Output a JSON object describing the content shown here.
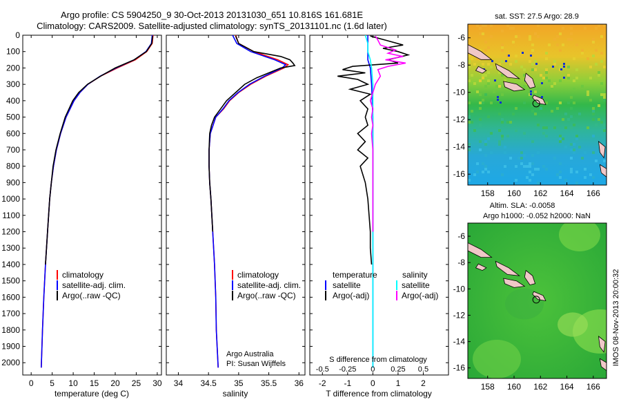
{
  "header": {
    "line1": "Argo profile: CS 5904250_9 30-Oct-2013 20131030_651 10.816S 161.681E",
    "line2": "Climatology: CARS2009. Satellite-adjusted climatology: synTS_20131101.nc (1.6d later)"
  },
  "timestamp": "IMOS 08-Nov-2013 20:00:32",
  "chart_data": [
    {
      "id": "temperature",
      "type": "line",
      "xlabel": "temperature (deg C)",
      "ylabel": "",
      "xlim": [
        -2,
        31
      ],
      "ylim": [
        2075,
        0
      ],
      "xticks": [
        0,
        5,
        10,
        15,
        20,
        25,
        30
      ],
      "yticks": [
        0,
        100,
        200,
        300,
        400,
        500,
        600,
        700,
        800,
        900,
        1000,
        1100,
        1200,
        1300,
        1400,
        1500,
        1600,
        1700,
        1800,
        1900,
        2000
      ],
      "legend": [
        "climatology",
        "satellite-adj. clim.",
        "Argo(..raw -QC)"
      ],
      "annotations": [],
      "series": [
        {
          "name": "climatology",
          "color": "#ff0000",
          "depth": [
            0,
            50,
            100,
            150,
            200,
            250,
            300,
            350,
            400,
            500,
            600,
            700,
            800,
            900,
            1000,
            1200,
            1400,
            1600,
            1800,
            2030
          ],
          "values": [
            29.0,
            28.8,
            27.5,
            24.8,
            20.5,
            16.5,
            13.5,
            11.6,
            10.2,
            8.3,
            7.0,
            6.0,
            5.3,
            4.8,
            4.4,
            3.9,
            3.4,
            3.0,
            2.7,
            2.4
          ]
        },
        {
          "name": "satellite-adj. clim.",
          "color": "#0000ff",
          "depth": [
            0,
            50,
            100,
            150,
            200,
            250,
            300,
            350,
            400,
            500,
            600,
            700,
            800,
            900,
            1000,
            1200,
            1400,
            1600,
            1800,
            2030
          ],
          "values": [
            28.8,
            28.6,
            27.3,
            24.5,
            20.2,
            16.4,
            13.5,
            11.6,
            10.2,
            8.3,
            7.0,
            6.0,
            5.3,
            4.8,
            4.4,
            3.9,
            3.4,
            3.0,
            2.7,
            2.4
          ]
        },
        {
          "name": "Argo(..raw -QC)",
          "color": "#000000",
          "depth": [
            5,
            50,
            100,
            150,
            200,
            250,
            300,
            350,
            400,
            500,
            600,
            700,
            800,
            900,
            1000,
            1200,
            1400
          ],
          "values": [
            28.9,
            28.7,
            27.4,
            24.5,
            20.0,
            16.5,
            13.4,
            11.3,
            9.9,
            8.1,
            6.9,
            5.9,
            5.2,
            4.8,
            4.4,
            3.9,
            3.4
          ]
        }
      ]
    },
    {
      "id": "salinity",
      "type": "line",
      "xlabel": "salinity",
      "ylabel": "",
      "xlim": [
        33.8,
        36.1
      ],
      "ylim": [
        2075,
        0
      ],
      "xticks": [
        34,
        34.5,
        35,
        35.5,
        36
      ],
      "legend": [
        "climatology",
        "satellite-adj. clim.",
        "Argo(..raw -QC)"
      ],
      "annotations": [
        "Argo Australia",
        "PI: Susan Wijffels"
      ],
      "series": [
        {
          "name": "climatology",
          "color": "#ff0000",
          "depth": [
            0,
            50,
            100,
            150,
            180,
            200,
            250,
            300,
            350,
            400,
            450,
            500,
            600,
            700,
            800,
            900,
            1000,
            1200,
            1400,
            1600,
            1800,
            2030
          ],
          "values": [
            34.95,
            35.0,
            35.25,
            35.65,
            35.82,
            35.75,
            35.45,
            35.2,
            35.0,
            34.85,
            34.75,
            34.62,
            34.53,
            34.51,
            34.51,
            34.52,
            34.54,
            34.57,
            34.6,
            34.62,
            34.63,
            34.66
          ]
        },
        {
          "name": "satellite-adj. clim.",
          "color": "#0000ff",
          "depth": [
            0,
            50,
            100,
            150,
            180,
            200,
            250,
            300,
            350,
            400,
            450,
            500,
            600,
            700,
            800,
            900,
            1000,
            1200,
            1400,
            1600,
            1800,
            2030
          ],
          "values": [
            34.9,
            34.97,
            35.2,
            35.6,
            35.78,
            35.72,
            35.43,
            35.18,
            34.99,
            34.84,
            34.74,
            34.62,
            34.53,
            34.51,
            34.51,
            34.52,
            34.54,
            34.57,
            34.6,
            34.62,
            34.63,
            34.66
          ]
        },
        {
          "name": "Argo(..raw -QC)",
          "color": "#000000",
          "depth": [
            5,
            50,
            100,
            130,
            150,
            170,
            185,
            200,
            230,
            260,
            300,
            350,
            400,
            450,
            500,
            550,
            600,
            700,
            800,
            900,
            1000,
            1200
          ],
          "values": [
            34.95,
            35.0,
            35.25,
            35.7,
            35.85,
            35.9,
            35.93,
            35.7,
            35.5,
            35.3,
            35.1,
            34.95,
            34.8,
            34.7,
            34.6,
            34.55,
            34.52,
            34.51,
            34.51,
            34.52,
            34.54,
            34.57
          ]
        }
      ]
    },
    {
      "id": "differences",
      "type": "line",
      "xlabel": "T difference from climatology",
      "top_label": "S difference from climatology",
      "xlim": [
        -2.5,
        3.0
      ],
      "ylim": [
        2075,
        0
      ],
      "xticks": [
        -2,
        -1,
        0,
        1,
        2
      ],
      "top_ticks": [
        "-0.5",
        "-0.25",
        "0",
        "0.25",
        "0.5"
      ],
      "top_tick_values": [
        -2.0,
        -1.0,
        0,
        1.0,
        2.0
      ],
      "legend_temperature": {
        "title": "temperature",
        "items": [
          "satellite",
          "Argo(-adj)"
        ]
      },
      "legend_salinity": {
        "title": "salinity",
        "items": [
          "satellite",
          "Argo(-adj)"
        ]
      },
      "series": [
        {
          "name": "temperature satellite",
          "color": "#0000ff",
          "depth": [
            0,
            50,
            100,
            150,
            200,
            300,
            500,
            1000,
            2030
          ],
          "values": [
            -0.2,
            -0.2,
            -0.2,
            -0.2,
            -0.1,
            -0.05,
            0,
            0,
            0
          ]
        },
        {
          "name": "temperature Argo(-adj)",
          "color": "#000000",
          "depth": [
            5,
            30,
            60,
            80,
            100,
            120,
            150,
            170,
            190,
            210,
            230,
            250,
            270,
            300,
            330,
            360,
            400,
            450,
            500,
            550,
            600,
            650,
            700,
            750,
            800,
            900,
            1000,
            1100,
            1200,
            1300,
            1400
          ],
          "values": [
            -0.1,
            0.5,
            1.2,
            0.4,
            1.0,
            1.4,
            0.6,
            1.0,
            -0.8,
            -1.2,
            -0.3,
            -1.4,
            -0.6,
            -0.2,
            -0.9,
            -0.1,
            -0.5,
            -0.2,
            -0.3,
            -0.2,
            -0.6,
            -0.3,
            -0.6,
            -0.2,
            -0.5,
            -0.3,
            -0.2,
            -0.15,
            -0.1,
            -0.1,
            -0.05
          ]
        },
        {
          "name": "salinity satellite",
          "color": "#00ffff",
          "depth": [
            0,
            50,
            100,
            150,
            200,
            300,
            500,
            1000,
            2030
          ],
          "values": [
            -0.3,
            -0.2,
            -0.2,
            -0.1,
            -0.05,
            0,
            0,
            0,
            0
          ]
        },
        {
          "name": "salinity Argo(-adj)",
          "color": "#ff00ff",
          "depth": [
            5,
            30,
            60,
            90,
            110,
            130,
            150,
            170,
            190,
            210,
            250,
            300,
            350,
            400,
            450,
            500,
            550,
            600,
            700,
            800,
            900,
            1000,
            1200
          ],
          "values": [
            0.1,
            0.2,
            0.3,
            0.9,
            0.6,
            1.2,
            0.5,
            1.3,
            0.6,
            0.2,
            0.3,
            0.1,
            0.0,
            -0.1,
            0.0,
            -0.05,
            0.0,
            -0.05,
            0.0,
            0.0,
            0.0,
            0.0,
            0.0
          ]
        }
      ]
    },
    {
      "id": "sst_map",
      "type": "heatmap",
      "title": "sat. SST: 27.5  Argo: 28.9",
      "xlim": [
        156.5,
        167
      ],
      "ylim": [
        -16.8,
        -5
      ],
      "xticks": [
        158,
        160,
        162,
        164,
        166
      ],
      "yticks": [
        -6,
        -8,
        -10,
        -12,
        -14,
        -16
      ],
      "argo_marker": {
        "lon": 161.681,
        "lat": -10.816
      }
    },
    {
      "id": "sla_map",
      "type": "heatmap",
      "title_line1": "Altim. SLA: -0.0058",
      "title_line2": "Argo h1000: -0.052  h2000: NaN",
      "xlim": [
        156.5,
        167
      ],
      "ylim": [
        -16.8,
        -5
      ],
      "xticks": [
        158,
        160,
        162,
        164,
        166
      ],
      "yticks": [
        -6,
        -8,
        -10,
        -12,
        -14,
        -16
      ],
      "argo_marker": {
        "lon": 161.681,
        "lat": -10.816
      }
    }
  ]
}
